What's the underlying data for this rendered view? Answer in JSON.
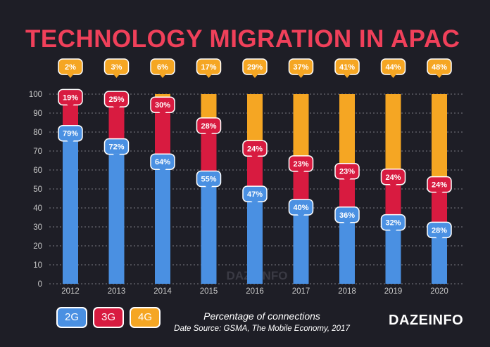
{
  "title": "TECHNOLOGY MIGRATION IN APAC",
  "subtitle": "Percentage of connections",
  "source": "Date Source: GSMA, The Mobile Economy, 2017",
  "brand": "DAZEINFO",
  "watermark": "DAZEINFO",
  "colors": {
    "background": "#1e1e26",
    "title": "#f0405a",
    "2G": "#4a90e2",
    "3G": "#d81b40",
    "4G": "#f5a623",
    "axis_text": "#c9c9c9",
    "grid": "#7a7a82"
  },
  "legend": [
    {
      "label": "2G",
      "color": "#4a90e2"
    },
    {
      "label": "3G",
      "color": "#d81b40"
    },
    {
      "label": "4G",
      "color": "#f5a623"
    }
  ],
  "chart_data": {
    "type": "bar",
    "stacked": true,
    "categories": [
      "2012",
      "2013",
      "2014",
      "2015",
      "2016",
      "2017",
      "2018",
      "2019",
      "2020"
    ],
    "series": [
      {
        "name": "2G",
        "values": [
          79,
          72,
          64,
          55,
          47,
          40,
          36,
          32,
          28
        ]
      },
      {
        "name": "3G",
        "values": [
          19,
          25,
          30,
          28,
          24,
          23,
          23,
          24,
          24
        ]
      },
      {
        "name": "4G",
        "values": [
          2,
          3,
          6,
          17,
          29,
          37,
          41,
          44,
          48
        ]
      }
    ],
    "labels": {
      "2G": [
        "79%",
        "72%",
        "64%",
        "55%",
        "47%",
        "40%",
        "36%",
        "32%",
        "28%"
      ],
      "3G": [
        "19%",
        "25%",
        "30%",
        "28%",
        "24%",
        "23%",
        "23%",
        "24%",
        "24%"
      ],
      "4G": [
        "2%",
        "3%",
        "6%",
        "17%",
        "29%",
        "37%",
        "41%",
        "44%",
        "48%"
      ]
    },
    "yticks": [
      0,
      10,
      20,
      30,
      40,
      50,
      60,
      70,
      80,
      90,
      100
    ],
    "ylim": [
      0,
      100
    ],
    "grid": true,
    "xlabel": "Percentage of connections",
    "ylabel": ""
  }
}
